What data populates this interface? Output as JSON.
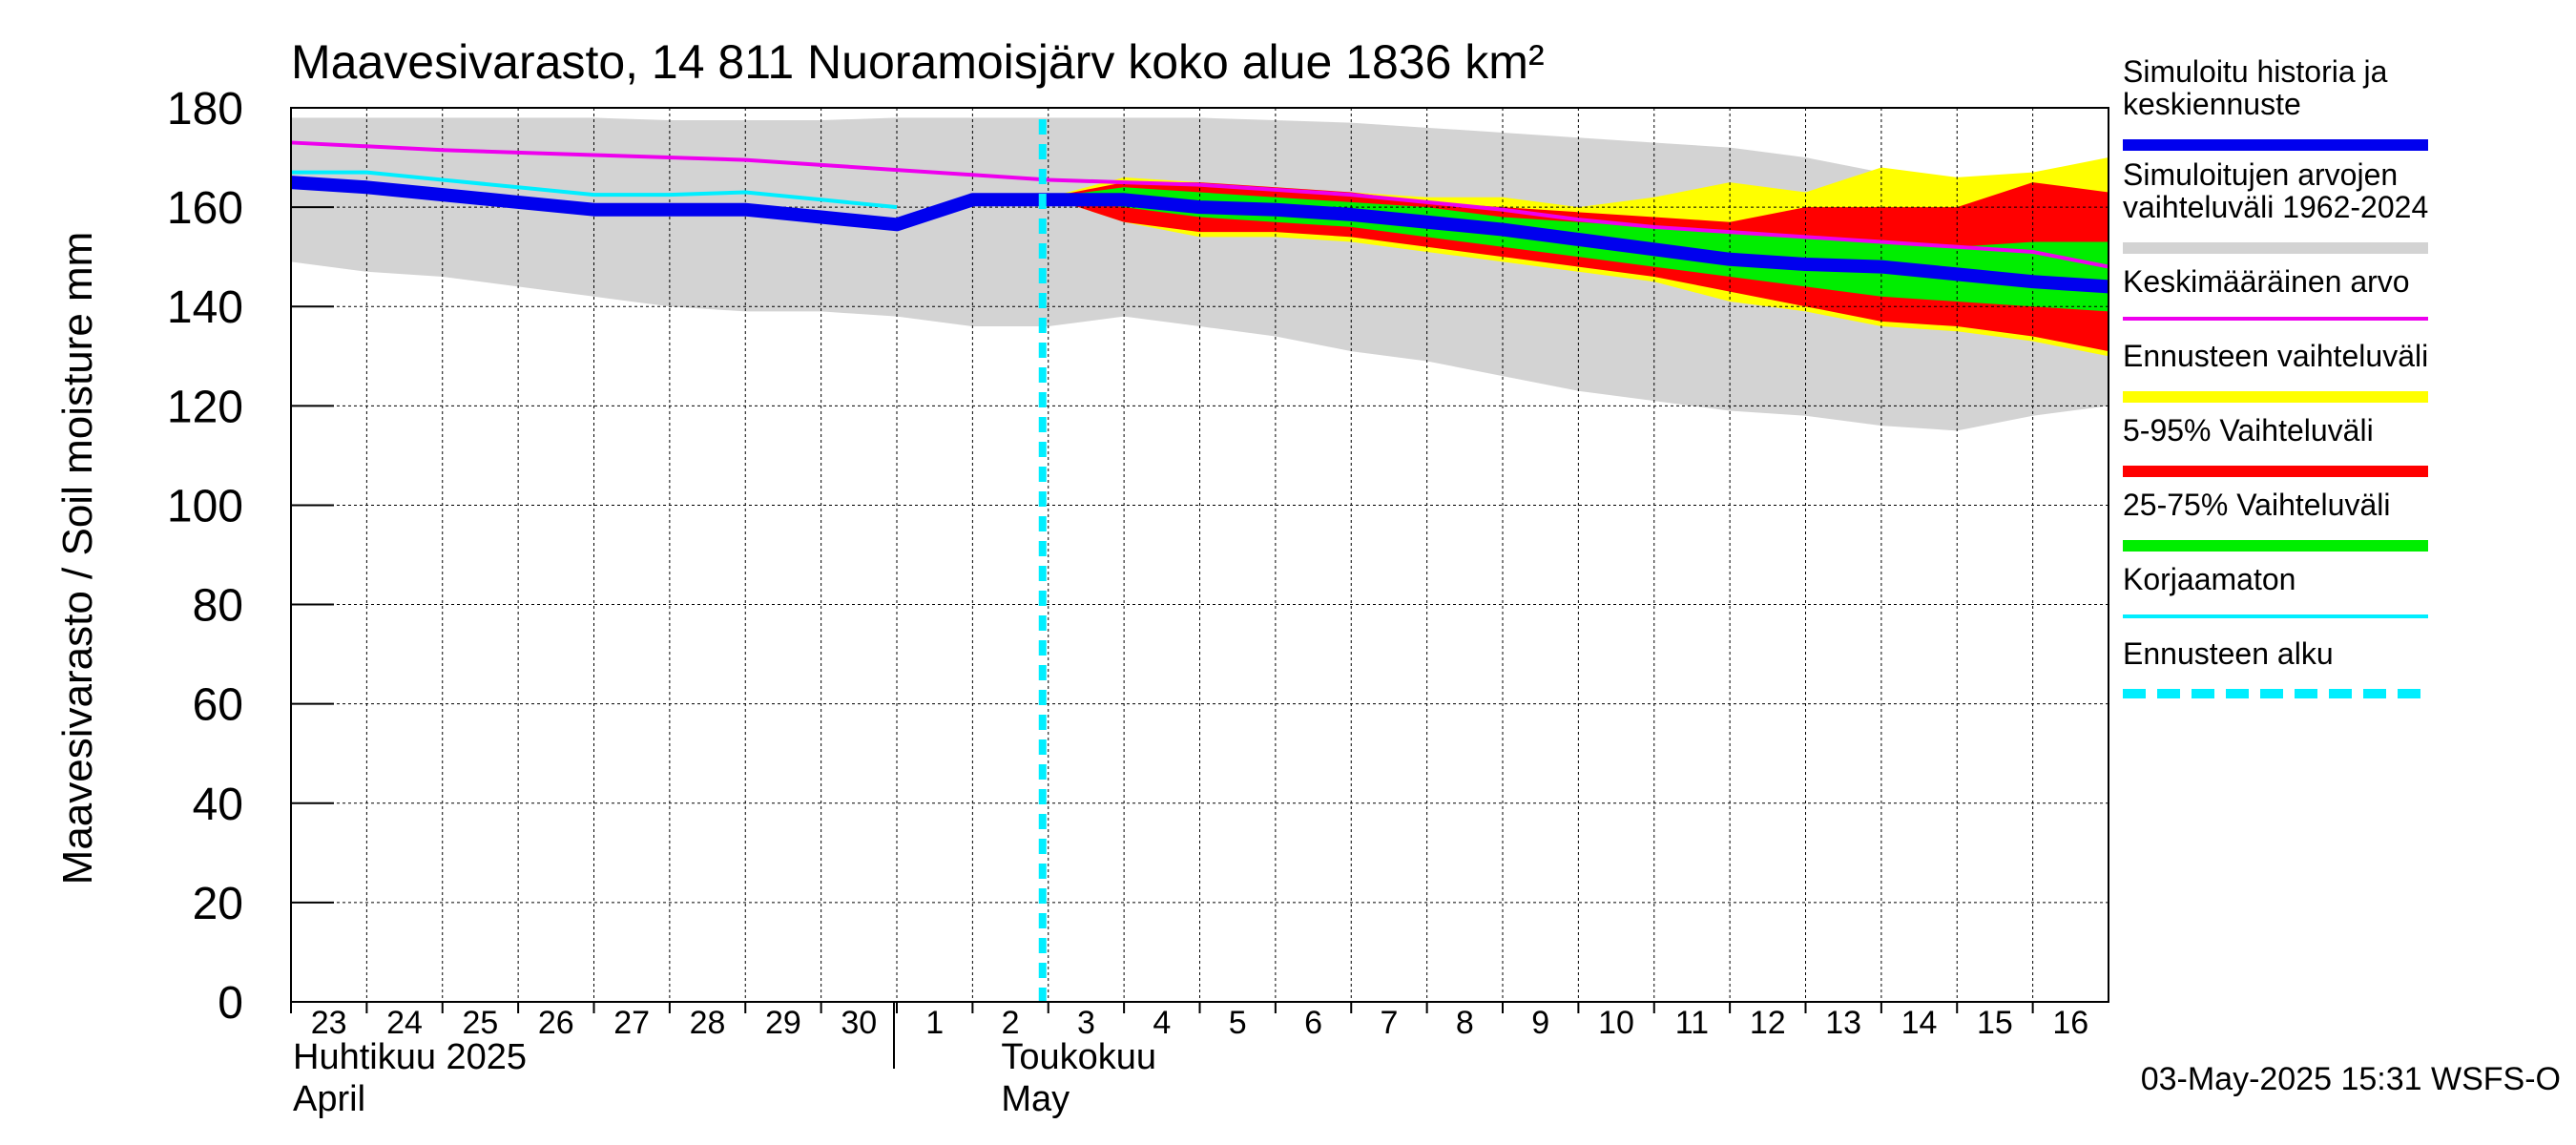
{
  "chart_data": {
    "type": "area",
    "title": "Maavesivarasto, 14 811 Nuoramoisjärv koko alue 1836 km²",
    "ylabel": "Maavesivarasto / Soil moisture   mm",
    "ylim": [
      0,
      180
    ],
    "yticks": [
      0,
      20,
      40,
      60,
      80,
      100,
      120,
      140,
      160,
      180
    ],
    "grid": true,
    "day_range": [
      0,
      24
    ],
    "day_ticks": [
      {
        "d": 0,
        "label": "23"
      },
      {
        "d": 1,
        "label": "24"
      },
      {
        "d": 2,
        "label": "25"
      },
      {
        "d": 3,
        "label": "26"
      },
      {
        "d": 4,
        "label": "27"
      },
      {
        "d": 5,
        "label": "28"
      },
      {
        "d": 6,
        "label": "29"
      },
      {
        "d": 7,
        "label": "30"
      },
      {
        "d": 8,
        "label": "1"
      },
      {
        "d": 9,
        "label": "2"
      },
      {
        "d": 10,
        "label": "3"
      },
      {
        "d": 11,
        "label": "4"
      },
      {
        "d": 12,
        "label": "5"
      },
      {
        "d": 13,
        "label": "6"
      },
      {
        "d": 14,
        "label": "7"
      },
      {
        "d": 15,
        "label": "8"
      },
      {
        "d": 16,
        "label": "9"
      },
      {
        "d": 17,
        "label": "10"
      },
      {
        "d": 18,
        "label": "11"
      },
      {
        "d": 19,
        "label": "12"
      },
      {
        "d": 20,
        "label": "13"
      },
      {
        "d": 21,
        "label": "14"
      },
      {
        "d": 22,
        "label": "15"
      },
      {
        "d": 23,
        "label": "16"
      }
    ],
    "month_labels": [
      {
        "d": 0,
        "fi": "Huhtikuu  2025",
        "en": "April"
      },
      {
        "d": 9,
        "fi": "Toukokuu",
        "en": "May"
      }
    ],
    "month_divider_day": 8,
    "forecast_start_day": 10,
    "bands": [
      {
        "name": "Simuloitujen arvojen vaihteluväli 1962-2024",
        "color": "#d3d3d3",
        "x": [
          0,
          1,
          2,
          3,
          4,
          5,
          6,
          7,
          8,
          9,
          10,
          11,
          12,
          13,
          14,
          15,
          16,
          17,
          18,
          19,
          20,
          21,
          22,
          23,
          24
        ],
        "upper": [
          178,
          178,
          178,
          178,
          178,
          177.5,
          177.5,
          177.5,
          178,
          178,
          178,
          178,
          178,
          177.5,
          177,
          176,
          175,
          174,
          173,
          172,
          170,
          167,
          165,
          165,
          165
        ],
        "lower": [
          149,
          147,
          146,
          144,
          142,
          140,
          139,
          139,
          138,
          136,
          136,
          138,
          136,
          134,
          131,
          129,
          126,
          123,
          121,
          119,
          118,
          116,
          115,
          118,
          120
        ]
      },
      {
        "name": "Ennusteen vaihteluväli",
        "color": "#ffff00",
        "x": [
          10,
          11,
          12,
          13,
          14,
          15,
          16,
          17,
          18,
          19,
          20,
          21,
          22,
          23,
          24
        ],
        "upper": [
          162,
          166,
          165,
          164,
          163,
          162,
          162,
          160,
          162,
          165,
          163,
          168,
          166,
          167,
          170
        ],
        "lower": [
          162,
          157,
          154,
          154,
          153,
          151,
          149,
          147,
          145,
          141,
          139,
          136,
          135,
          133,
          130
        ]
      },
      {
        "name": "5-95% Vaihteluväli",
        "color": "#ff0000",
        "x": [
          10,
          11,
          12,
          13,
          14,
          15,
          16,
          17,
          18,
          19,
          20,
          21,
          22,
          23,
          24
        ],
        "upper": [
          162,
          165,
          165,
          164,
          163,
          161,
          160,
          159,
          158,
          157,
          160,
          160,
          160,
          165,
          163
        ],
        "lower": [
          162,
          157,
          155,
          155,
          154,
          152,
          150,
          148,
          146,
          143,
          140,
          137,
          136,
          134,
          131
        ]
      },
      {
        "name": "25-75% Vaihteluväli",
        "color": "#00ee00",
        "x": [
          10,
          11,
          12,
          13,
          14,
          15,
          16,
          17,
          18,
          19,
          20,
          21,
          22,
          23,
          24
        ],
        "upper": [
          162,
          164,
          163,
          162,
          161,
          160,
          158,
          157,
          156,
          155,
          154,
          153,
          152,
          153,
          153
        ],
        "lower": [
          162,
          160,
          158,
          157,
          156,
          154,
          152,
          150,
          148,
          146,
          144,
          142,
          141,
          140,
          139
        ]
      }
    ],
    "series": [
      {
        "name": "Keskimääräinen arvo",
        "color": "#ee00ee",
        "width": 4,
        "x": [
          0,
          2,
          4,
          6,
          7,
          8,
          9,
          10,
          11,
          12,
          13,
          14,
          15,
          16,
          17,
          18,
          19,
          20,
          21,
          22,
          23,
          24
        ],
        "y": [
          173,
          171.5,
          170.5,
          169.5,
          168.5,
          167.5,
          166.5,
          165.5,
          165,
          164.5,
          163.5,
          162.5,
          161,
          159.5,
          157.5,
          156,
          155,
          154,
          153,
          152,
          151,
          148
        ]
      },
      {
        "name": "Korjaamaton",
        "color": "#00eeff",
        "width": 4,
        "x": [
          0,
          1,
          2,
          3,
          4,
          5,
          6,
          7,
          8
        ],
        "y": [
          167,
          167,
          165.5,
          164,
          162.5,
          162.5,
          163,
          161.5,
          160
        ]
      },
      {
        "name": "Simuloitu historia ja keskiennuste",
        "color": "#0000ee",
        "width": 14,
        "x": [
          0,
          1,
          2,
          3,
          4,
          5,
          6,
          7,
          8,
          9,
          10,
          11,
          12,
          13,
          14,
          15,
          16,
          17,
          18,
          19,
          20,
          21,
          22,
          23,
          24
        ],
        "y": [
          165,
          164,
          162.5,
          161,
          159.5,
          159.5,
          159.5,
          158,
          156.5,
          161.5,
          161.5,
          161.5,
          160,
          159.5,
          158.5,
          157,
          155.5,
          153.5,
          151.5,
          149.5,
          148.5,
          148,
          146.5,
          145,
          144
        ]
      }
    ],
    "legend": [
      {
        "label": "Simuloitu historia ja\nkeskiennuste",
        "color": "#0000ee",
        "style": "thick"
      },
      {
        "label": "Simuloitujen arvojen\nvaihteluväli 1962-2024",
        "color": "#d3d3d3",
        "style": "thick"
      },
      {
        "label": "Keskimääräinen arvo",
        "color": "#ee00ee",
        "style": "thin"
      },
      {
        "label": "Ennusteen vaihteluväli",
        "color": "#ffff00",
        "style": "thick"
      },
      {
        "label": "5-95% Vaihteluväli",
        "color": "#ff0000",
        "style": "thick"
      },
      {
        "label": "25-75% Vaihteluväli",
        "color": "#00ee00",
        "style": "thick"
      },
      {
        "label": "Korjaamaton",
        "color": "#00eeff",
        "style": "thin"
      },
      {
        "label": "Ennusteen alku",
        "color": "#00eeff",
        "style": "dashed"
      }
    ],
    "footer": "03-May-2025 15:31 WSFS-O"
  }
}
